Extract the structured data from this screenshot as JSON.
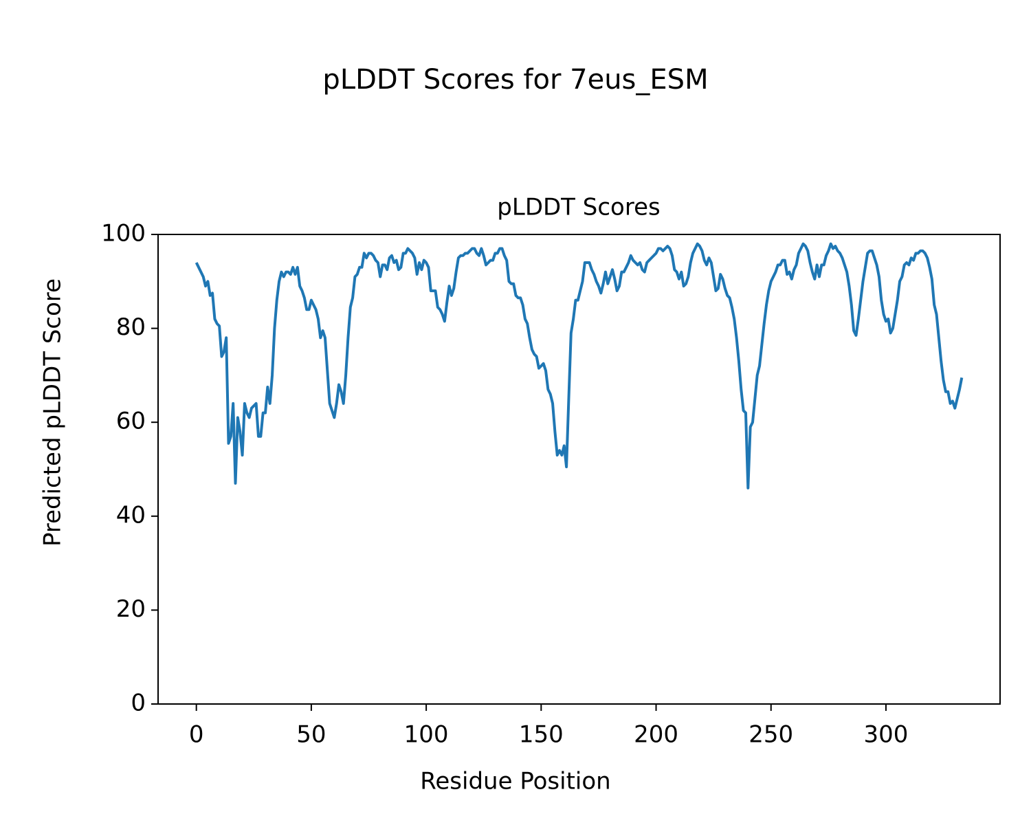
{
  "chart_data": {
    "type": "line",
    "title": "pLDDT Scores for 7eus_ESM",
    "subtitle": "pLDDT Scores",
    "xlabel": "Residue Position",
    "ylabel": "Predicted pLDDT Score",
    "color": "#1f77b4",
    "xlim": [
      -16.65,
      349.65
    ],
    "ylim": [
      0,
      100
    ],
    "xticks": [
      0,
      50,
      100,
      150,
      200,
      250,
      300
    ],
    "yticks": [
      0,
      20,
      40,
      60,
      80,
      100
    ],
    "x": [
      0,
      1,
      2,
      3,
      4,
      5,
      6,
      7,
      8,
      9,
      10,
      11,
      12,
      13,
      14,
      15,
      16,
      17,
      18,
      19,
      20,
      21,
      22,
      23,
      24,
      25,
      26,
      27,
      28,
      29,
      30,
      31,
      32,
      33,
      34,
      35,
      36,
      37,
      38,
      39,
      40,
      41,
      42,
      43,
      44,
      45,
      46,
      47,
      48,
      49,
      50,
      51,
      52,
      53,
      54,
      55,
      56,
      57,
      58,
      59,
      60,
      61,
      62,
      63,
      64,
      65,
      66,
      67,
      68,
      69,
      70,
      71,
      72,
      73,
      74,
      75,
      76,
      77,
      78,
      79,
      80,
      81,
      82,
      83,
      84,
      85,
      86,
      87,
      88,
      89,
      90,
      91,
      92,
      93,
      94,
      95,
      96,
      97,
      98,
      99,
      100,
      101,
      102,
      103,
      104,
      105,
      106,
      107,
      108,
      109,
      110,
      111,
      112,
      113,
      114,
      115,
      116,
      117,
      118,
      119,
      120,
      121,
      122,
      123,
      124,
      125,
      126,
      127,
      128,
      129,
      130,
      131,
      132,
      133,
      134,
      135,
      136,
      137,
      138,
      139,
      140,
      141,
      142,
      143,
      144,
      145,
      146,
      147,
      148,
      149,
      150,
      151,
      152,
      153,
      154,
      155,
      156,
      157,
      158,
      159,
      160,
      161,
      162,
      163,
      164,
      165,
      166,
      167,
      168,
      169,
      170,
      171,
      172,
      173,
      174,
      175,
      176,
      177,
      178,
      179,
      180,
      181,
      182,
      183,
      184,
      185,
      186,
      187,
      188,
      189,
      190,
      191,
      192,
      193,
      194,
      195,
      196,
      197,
      198,
      199,
      200,
      201,
      202,
      203,
      204,
      205,
      206,
      207,
      208,
      209,
      210,
      211,
      212,
      213,
      214,
      215,
      216,
      217,
      218,
      219,
      220,
      221,
      222,
      223,
      224,
      225,
      226,
      227,
      228,
      229,
      230,
      231,
      232,
      233,
      234,
      235,
      236,
      237,
      238,
      239,
      240,
      241,
      242,
      243,
      244,
      245,
      246,
      247,
      248,
      249,
      250,
      251,
      252,
      253,
      254,
      255,
      256,
      257,
      258,
      259,
      260,
      261,
      262,
      263,
      264,
      265,
      266,
      267,
      268,
      269,
      270,
      271,
      272,
      273,
      274,
      275,
      276,
      277,
      278,
      279,
      280,
      281,
      282,
      283,
      284,
      285,
      286,
      287,
      288,
      289,
      290,
      291,
      292,
      293,
      294,
      295,
      296,
      297,
      298,
      299,
      300,
      301,
      302,
      303,
      304,
      305,
      306,
      307,
      308,
      309,
      310,
      311,
      312,
      313,
      314,
      315,
      316,
      317,
      318,
      319,
      320,
      321,
      322,
      323,
      324,
      325,
      326,
      327,
      328,
      329,
      330,
      331,
      332,
      333
    ],
    "values": [
      94,
      93,
      92,
      91,
      89,
      90,
      87,
      87.5,
      82,
      81,
      80.5,
      74,
      75,
      78,
      55.5,
      57,
      64,
      47,
      61,
      58,
      53,
      64,
      62,
      61,
      63,
      63.5,
      64,
      57,
      57,
      62,
      62,
      67.5,
      64,
      70,
      80,
      86,
      90,
      92,
      91,
      92,
      92,
      91.5,
      93,
      91.5,
      93,
      89,
      88,
      86.5,
      84,
      84,
      86,
      85,
      84,
      82,
      78,
      79.5,
      78,
      71,
      64,
      62.5,
      61,
      64,
      68,
      66.5,
      64,
      70,
      78,
      84.5,
      86.5,
      91,
      91.5,
      93,
      93,
      96,
      95,
      96,
      96,
      95.5,
      94.5,
      94,
      91,
      93.5,
      93.5,
      92.5,
      95,
      95.5,
      94,
      94.5,
      92.5,
      93,
      96,
      96,
      97,
      96.5,
      96,
      95,
      91.5,
      94,
      92.5,
      94.5,
      94,
      93,
      88,
      88,
      88,
      84.5,
      84,
      83,
      81.5,
      85.5,
      89,
      87,
      88.5,
      92,
      95,
      95.5,
      95.5,
      96,
      96,
      96.5,
      97,
      97,
      96,
      95.5,
      97,
      95.5,
      93.5,
      94,
      94.5,
      94.5,
      96,
      96,
      97,
      97,
      95.5,
      94.5,
      90,
      89.5,
      89.5,
      87,
      86.5,
      86.5,
      85,
      82,
      81,
      78,
      75.5,
      74.5,
      74,
      71.5,
      72,
      72.5,
      71,
      67,
      66,
      64,
      58,
      53,
      54,
      53,
      55,
      50.5,
      65,
      79,
      82,
      86,
      86,
      88,
      90,
      94,
      94,
      94,
      92.5,
      91.5,
      90,
      89,
      87.5,
      89.5,
      92,
      89.5,
      91,
      92.5,
      90.5,
      88,
      89,
      92,
      92,
      93,
      94,
      95.5,
      94.5,
      94,
      93.5,
      94,
      92.5,
      92,
      94,
      94.5,
      95,
      95.5,
      96,
      97,
      97,
      96.5,
      97,
      97.5,
      97,
      95.5,
      92.5,
      92,
      90.5,
      92,
      89,
      89.5,
      91,
      94,
      96,
      97,
      98,
      97.5,
      96.5,
      94.5,
      93.5,
      95,
      94,
      91,
      88,
      88.5,
      91.5,
      90.5,
      88.5,
      87,
      86.5,
      84.5,
      82,
      78,
      73,
      67,
      62.5,
      62,
      46,
      59,
      60,
      65,
      70,
      72,
      76.5,
      81,
      85,
      88,
      90,
      91,
      92,
      93.5,
      93.5,
      94.5,
      94.5,
      91.5,
      92,
      90.5,
      92.5,
      93.5,
      96,
      97,
      98,
      97.5,
      96.5,
      94,
      92,
      90.5,
      93.5,
      91,
      93.5,
      93.5,
      95.5,
      96.5,
      98,
      97,
      97.5,
      96.5,
      96,
      95,
      93.5,
      92,
      89,
      85,
      79.5,
      78.5,
      82,
      86,
      90,
      93,
      96,
      96.5,
      96.5,
      95,
      93.5,
      91,
      86,
      83,
      81.5,
      82,
      79,
      80,
      83,
      86,
      90,
      91,
      93.5,
      94,
      93.5,
      95,
      94.5,
      96,
      96,
      96.5,
      96.5,
      96,
      95,
      93,
      90.5,
      85,
      83,
      78,
      73,
      69,
      66.5,
      66.5,
      64,
      64.5,
      63,
      65,
      67,
      69.5
    ]
  }
}
